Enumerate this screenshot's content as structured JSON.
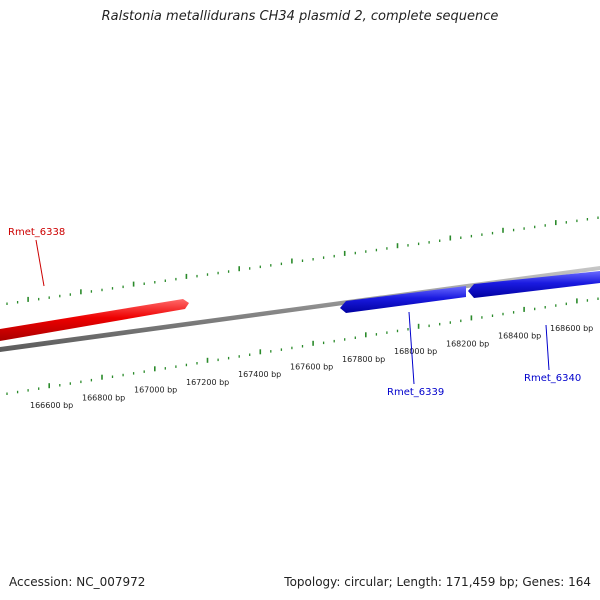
{
  "title": "Ralstonia metallidurans CH34 plasmid 2, complete sequence",
  "footer": {
    "accession": "Accession: NC_007972",
    "summary": "Topology: circular; Length: 171,459 bp; Genes: 164"
  },
  "colors": {
    "forward_gene": "#ee0000",
    "reverse_gene": "#1010dd",
    "backbone": "#8a8a8a",
    "ticks": "#2a8a2a",
    "forward_label": "#cc0000",
    "reverse_label": "#0000cc"
  },
  "ruler": {
    "labels": [
      {
        "bp": 166600,
        "text": "166600 bp"
      },
      {
        "bp": 166800,
        "text": "166800 bp"
      },
      {
        "bp": 167000,
        "text": "167000 bp"
      },
      {
        "bp": 167200,
        "text": "167200 bp"
      },
      {
        "bp": 167400,
        "text": "167400 bp"
      },
      {
        "bp": 167600,
        "text": "167600 bp"
      },
      {
        "bp": 167800,
        "text": "167800 bp"
      },
      {
        "bp": 168000,
        "text": "168000 bp"
      },
      {
        "bp": 168200,
        "text": "168200 bp"
      },
      {
        "bp": 168400,
        "text": "168400 bp"
      },
      {
        "bp": 168600,
        "text": "168600 bp"
      }
    ]
  },
  "genes": [
    {
      "name": "Rmet_6338",
      "strand": "forward"
    },
    {
      "name": "Rmet_6339",
      "strand": "reverse"
    },
    {
      "name": "Rmet_6340",
      "strand": "reverse"
    }
  ]
}
